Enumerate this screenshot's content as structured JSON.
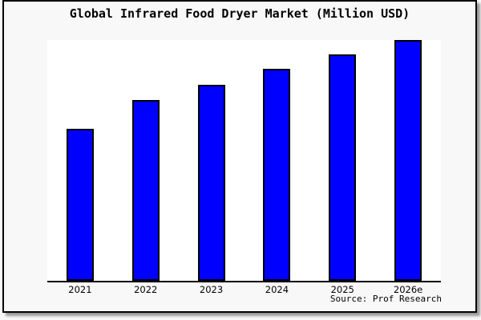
{
  "header": {
    "title": "Global Infrared Food Dryer Market (Million USD)"
  },
  "footer": {
    "source": "Source: Prof Research"
  },
  "colors": {
    "bar_fill": "#0000ff",
    "bar_border": "#000000",
    "frame_border": "#000000",
    "background": "#f8f8f8",
    "plot_background": "#ffffff",
    "axis_line": "#000000",
    "text": "#000000"
  },
  "chart_data": {
    "type": "bar",
    "title": "Global Infrared Food Dryer Market (Million USD)",
    "categories": [
      "2021",
      "2022",
      "2023",
      "2024",
      "2025",
      "2026e"
    ],
    "values": [
      63,
      75,
      81.5,
      88,
      94,
      100
    ],
    "xlabel": "",
    "ylabel": "",
    "ylim": [
      0,
      100
    ],
    "yaxis_visible": false,
    "grid": false,
    "legend": false,
    "note": "No y-axis scale or value labels are shown in the figure; values are relative bar heights normalized to 2026e = 100."
  }
}
